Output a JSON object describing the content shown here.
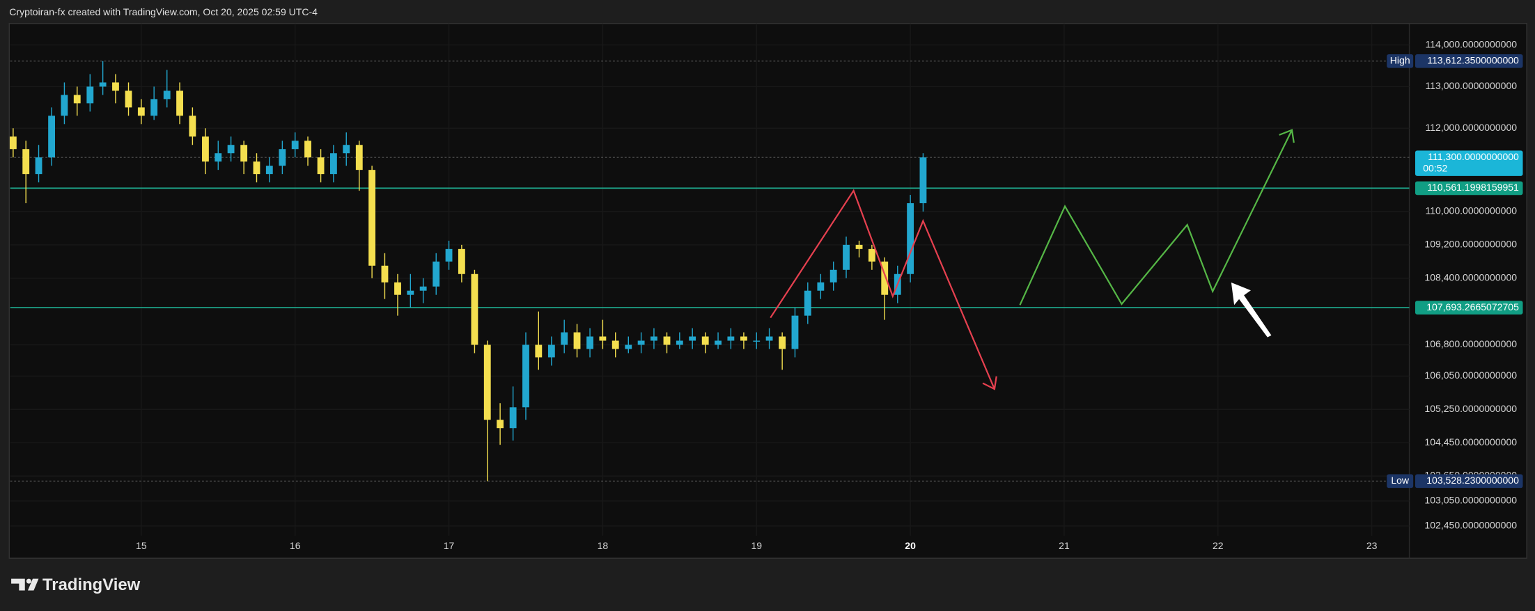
{
  "header": "Cryptoiran-fx created with TradingView.com, Oct 20, 2025 02:59 UTC-4",
  "footer_brand": "TradingView",
  "chart_data": {
    "type": "candlestick",
    "x": [
      14.167,
      14.25,
      14.333,
      14.417,
      14.5,
      14.583,
      14.667,
      14.75,
      14.833,
      14.917,
      15.0,
      15.083,
      15.167,
      15.25,
      15.333,
      15.417,
      15.5,
      15.583,
      15.667,
      15.75,
      15.833,
      15.917,
      16.0,
      16.083,
      16.167,
      16.25,
      16.333,
      16.417,
      16.5,
      16.583,
      16.667,
      16.75,
      16.833,
      16.917,
      17.0,
      17.083,
      17.167,
      17.25,
      17.333,
      17.417,
      17.5,
      17.583,
      17.667,
      17.75,
      17.833,
      17.917,
      18.0,
      18.083,
      18.167,
      18.25,
      18.333,
      18.417,
      18.5,
      18.583,
      18.667,
      18.75,
      18.833,
      18.917,
      19.0,
      19.083,
      19.167,
      19.25,
      19.333,
      19.417,
      19.5,
      19.583,
      19.667,
      19.75,
      19.833,
      19.917,
      20.0,
      20.083
    ],
    "open": [
      111800,
      111500,
      110900,
      111300,
      112300,
      112800,
      112600,
      113000,
      113100,
      112900,
      112500,
      112300,
      112700,
      112900,
      112300,
      111800,
      111200,
      111400,
      111600,
      111200,
      110900,
      111100,
      111500,
      111700,
      111300,
      110900,
      111400,
      111600,
      111000,
      108700,
      108300,
      108000,
      108100,
      108200,
      108800,
      109100,
      108500,
      106800,
      105000,
      104800,
      105300,
      106800,
      106500,
      106800,
      107100,
      106700,
      107000,
      106900,
      106700,
      106800,
      106900,
      107000,
      106800,
      106900,
      107000,
      106800,
      106900,
      107000,
      106900,
      106900,
      107000,
      106700,
      107500,
      108100,
      108300,
      108600,
      109200,
      109100,
      108800,
      108000,
      108500,
      110200
    ],
    "high": [
      112000,
      111700,
      111600,
      112500,
      113100,
      113000,
      113300,
      113612.35,
      113300,
      113100,
      112700,
      113000,
      113400,
      113100,
      112500,
      112000,
      111700,
      111800,
      111700,
      111400,
      111300,
      111700,
      111900,
      111800,
      111500,
      111600,
      111900,
      111700,
      111100,
      109000,
      108500,
      108500,
      108400,
      109000,
      109300,
      109200,
      108600,
      106900,
      105400,
      105800,
      107100,
      107600,
      107000,
      107400,
      107300,
      107200,
      107400,
      107100,
      107000,
      107100,
      107200,
      107100,
      107100,
      107200,
      107100,
      107100,
      107200,
      107100,
      107100,
      107200,
      107100,
      107700,
      108300,
      108500,
      108800,
      109400,
      109300,
      109200,
      108900,
      108700,
      110400,
      111400
    ],
    "low": [
      111300,
      110200,
      110700,
      111100,
      112100,
      112300,
      112400,
      112800,
      112600,
      112300,
      112100,
      112200,
      112500,
      112100,
      111600,
      110900,
      111000,
      111200,
      110900,
      110700,
      110700,
      110900,
      111300,
      111100,
      110700,
      110700,
      111100,
      110500,
      108400,
      107900,
      107500,
      107700,
      107800,
      108000,
      108600,
      108300,
      106600,
      103528.23,
      104400,
      104500,
      105000,
      106200,
      106300,
      106600,
      106500,
      106500,
      106700,
      106500,
      106600,
      106600,
      106700,
      106600,
      106700,
      106700,
      106600,
      106700,
      106700,
      106700,
      106700,
      106700,
      106200,
      106500,
      107300,
      107900,
      108100,
      108400,
      108900,
      108600,
      107400,
      107800,
      108300,
      110000
    ],
    "close": [
      111500,
      110900,
      111300,
      112300,
      112800,
      112600,
      113000,
      113100,
      112900,
      112500,
      112300,
      112700,
      112900,
      112300,
      111800,
      111200,
      111400,
      111600,
      111200,
      110900,
      111100,
      111500,
      111700,
      111300,
      110900,
      111400,
      111600,
      111000,
      108700,
      108300,
      108000,
      108100,
      108200,
      108800,
      109100,
      108500,
      106800,
      105000,
      104800,
      105300,
      106800,
      106500,
      106800,
      107100,
      106700,
      107000,
      106900,
      106700,
      106800,
      106900,
      107000,
      106800,
      106900,
      107000,
      106800,
      106900,
      107000,
      106900,
      106900,
      107000,
      106700,
      107500,
      108100,
      108300,
      108600,
      109200,
      109100,
      108800,
      108000,
      108500,
      110200,
      111300
    ],
    "up_color": "#22a7cf",
    "down_color": "#f4df4f",
    "xlim": [
      14.148,
      23.244
    ],
    "xticks": [
      15,
      16,
      17,
      18,
      19,
      20,
      21,
      22,
      23
    ],
    "ylim": [
      101700,
      114516
    ],
    "yticks": [
      {
        "value": 114000,
        "label": "114,000.0000000000"
      },
      {
        "value": 113000,
        "label": "113,000.0000000000"
      },
      {
        "value": 112000,
        "label": "112,000.0000000000"
      },
      {
        "value": 110000,
        "label": "110,000.0000000000"
      },
      {
        "value": 109200,
        "label": "109,200.0000000000"
      },
      {
        "value": 108400,
        "label": "108,400.0000000000"
      },
      {
        "value": 106800,
        "label": "106,800.0000000000"
      },
      {
        "value": 106050,
        "label": "106,050.0000000000"
      },
      {
        "value": 105250,
        "label": "105,250.0000000000"
      },
      {
        "value": 104450,
        "label": "104,450.0000000000"
      },
      {
        "value": 103650,
        "label": "103,650.0000000000"
      },
      {
        "value": 103050,
        "label": "103,050.0000000000"
      },
      {
        "value": 102450,
        "label": "102,450.0000000000"
      }
    ],
    "grid": true,
    "price_lines": [
      {
        "value": 113612.35,
        "label": "113,612.3500000000",
        "tag": "High",
        "color": "#1c3566",
        "style": "dotted"
      },
      {
        "value": 111300,
        "label": "111,300.0000000000",
        "countdown": "00:52",
        "color": "#1bb6d8",
        "style": "dotted"
      },
      {
        "value": 110561.1998159951,
        "label": "110,561.1998159951",
        "color": "#119e84",
        "style": "solid"
      },
      {
        "value": 107693.2665072705,
        "label": "107,693.2665072705",
        "color": "#119e84",
        "style": "solid"
      },
      {
        "value": 103528.23,
        "label": "103,528.2300000000",
        "tag": "Low",
        "color": "#1c3566",
        "style": "dotted"
      }
    ]
  }
}
